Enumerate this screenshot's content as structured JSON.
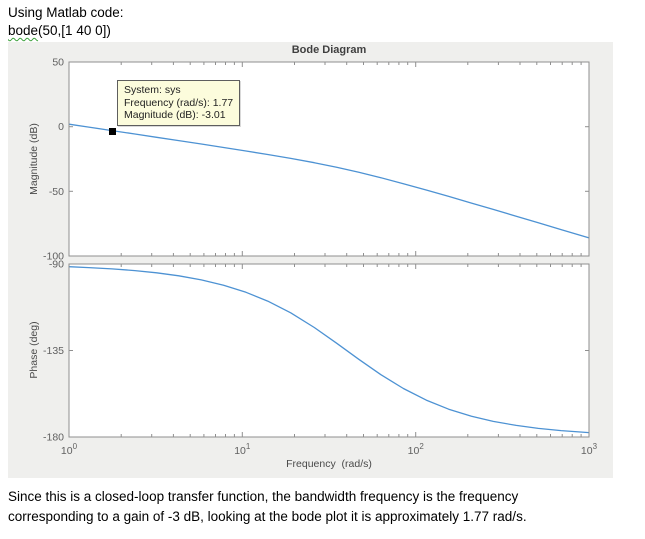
{
  "header": {
    "intro": "Using Matlab code:",
    "code_word": "bode",
    "code_rest": "(50,[1 40 0])"
  },
  "figure": {
    "title": "Bode Diagram",
    "xlabel": "Frequency  (rad/s)",
    "datatip": {
      "system": "System: sys",
      "frequency": "Frequency (rad/s): 1.77",
      "magnitude": "Magnitude (dB): -3.01"
    }
  },
  "chart_data": [
    {
      "type": "line",
      "name": "magnitude",
      "title": "Bode Diagram",
      "ylabel": "Magnitude (dB)",
      "x_scale": "log",
      "xlim": [
        1,
        1000
      ],
      "ylim": [
        -100,
        50
      ],
      "yticks": [
        50,
        0,
        -50,
        -100
      ],
      "xticks": [
        1,
        10,
        100,
        1000
      ],
      "x": [
        1,
        1.3,
        1.77,
        2.4,
        3.2,
        4.3,
        5.8,
        7.8,
        10.5,
        14,
        19,
        26,
        35,
        47,
        63,
        85,
        115,
        155,
        210,
        280,
        380,
        510,
        690,
        1000
      ],
      "y": [
        1.94,
        -0.35,
        -3.03,
        -5.68,
        -8.19,
        -10.78,
        -13.42,
        -16.07,
        -18.78,
        -21.49,
        -24.52,
        -27.89,
        -31.41,
        -35.27,
        -39.47,
        -44.07,
        -48.95,
        -53.91,
        -59.06,
        -64.0,
        -69.26,
        -74.35,
        -79.59,
        -86.03
      ],
      "marker_point": {
        "frequency_rad_s": 1.77,
        "magnitude_db": -3.01
      }
    },
    {
      "type": "line",
      "name": "phase",
      "ylabel": "Phase (deg)",
      "x_scale": "log",
      "xlim": [
        1,
        1000
      ],
      "ylim": [
        -180,
        -90
      ],
      "yticks": [
        -90,
        -135,
        -180
      ],
      "xticks": [
        1,
        10,
        100,
        1000
      ],
      "xlabel": "Frequency  (rad/s)",
      "x": [
        1,
        1.3,
        1.77,
        2.4,
        3.2,
        4.3,
        5.8,
        7.8,
        10.5,
        14,
        19,
        26,
        35,
        47,
        63,
        85,
        115,
        155,
        210,
        280,
        380,
        510,
        690,
        1000
      ],
      "y": [
        -91.43,
        -91.86,
        -92.53,
        -93.43,
        -94.57,
        -96.14,
        -98.25,
        -101.04,
        -104.71,
        -109.29,
        -115.41,
        -123.02,
        -131.19,
        -139.6,
        -147.59,
        -154.79,
        -160.81,
        -165.53,
        -169.22,
        -171.86,
        -173.99,
        -175.52,
        -176.68,
        -177.71
      ]
    }
  ],
  "footer": {
    "line1": "Since this is a closed-loop transfer function, the bandwidth frequency is the frequency",
    "line2": "corresponding to a gain of -3 dB, looking at the bode plot it is approximately 1.77 rad/s."
  },
  "colors": {
    "curve": "#4d92d3",
    "figure_bg": "#efefed",
    "plot_bg": "#ffffff",
    "axes_border": "#8f8f8f",
    "tick_label": "#616161",
    "datatip_bg": "#fcfcdc",
    "datatip_border": "#5e5e5e",
    "marker": "#000000",
    "misspell_underline": "#3aa03a"
  }
}
